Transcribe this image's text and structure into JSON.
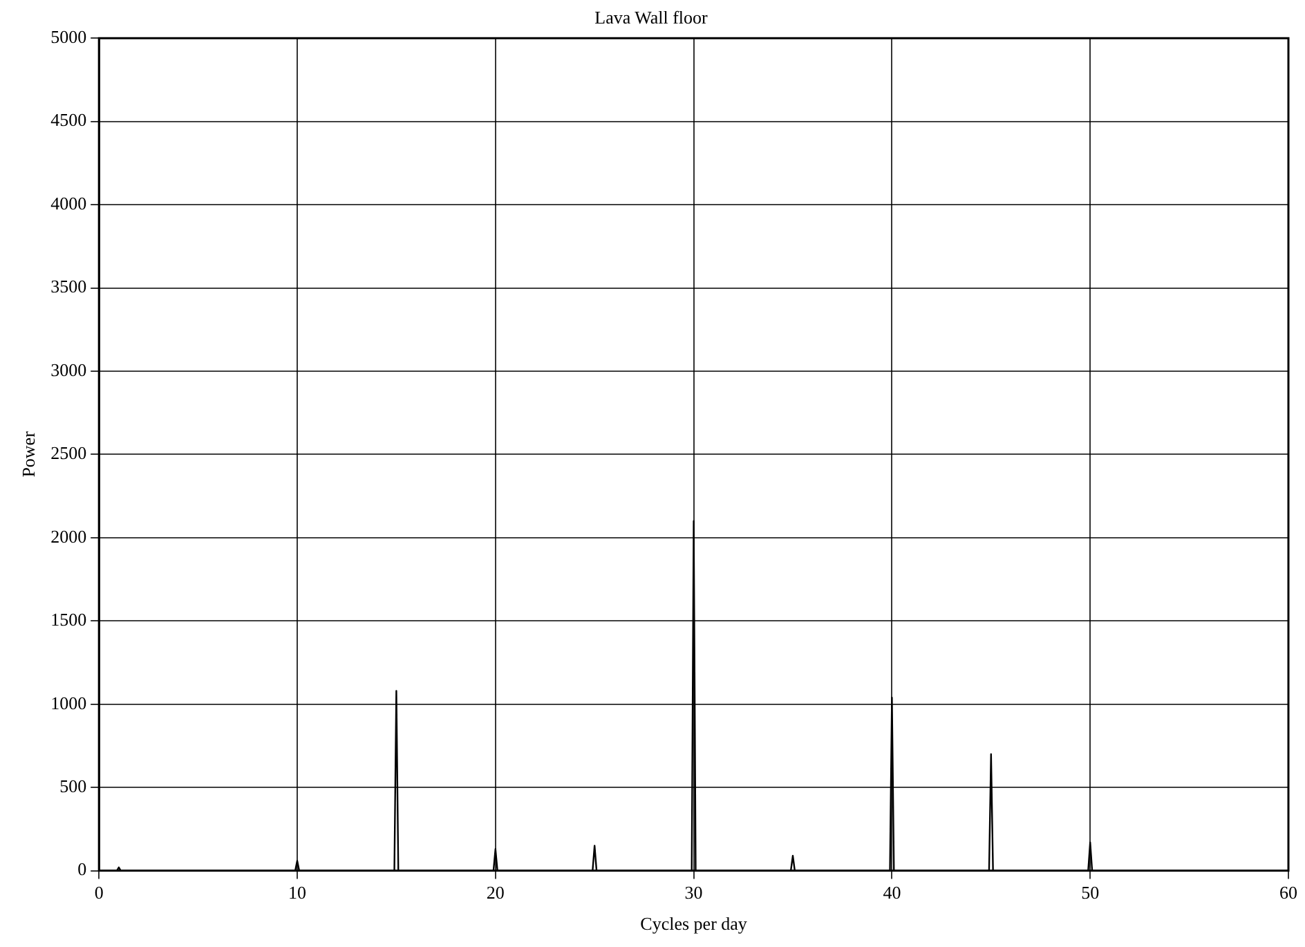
{
  "chart_data": {
    "type": "line",
    "title": "Lava Wall floor",
    "xlabel": "Cycles per day",
    "ylabel": "Power",
    "x": [
      0,
      0.9,
      1,
      1.1,
      9.9,
      10,
      10.1,
      14.9,
      15,
      15.1,
      19.9,
      20,
      20.1,
      24.9,
      25,
      25.1,
      29.9,
      30,
      30.1,
      34.9,
      35,
      35.1,
      39.9,
      40,
      40.1,
      44.9,
      45,
      45.1,
      49.9,
      50,
      50.1,
      60
    ],
    "series": [
      {
        "color": "#000000",
        "values": [
          0,
          0,
          20,
          0,
          0,
          60,
          0,
          0,
          1080,
          0,
          0,
          130,
          0,
          0,
          150,
          0,
          0,
          2100,
          0,
          0,
          90,
          0,
          0,
          1040,
          0,
          0,
          700,
          0,
          0,
          170,
          0,
          0
        ]
      }
    ],
    "xlim": [
      0,
      60
    ],
    "xticks": [
      0,
      10,
      20,
      30,
      40,
      50,
      60
    ],
    "ylim": [
      0,
      5000
    ],
    "yticks": [
      0,
      500,
      1000,
      1500,
      2000,
      2500,
      3000,
      3500,
      4000,
      4500,
      5000
    ],
    "grid": true,
    "legend": false,
    "marker": "none",
    "line_style": "solid"
  }
}
